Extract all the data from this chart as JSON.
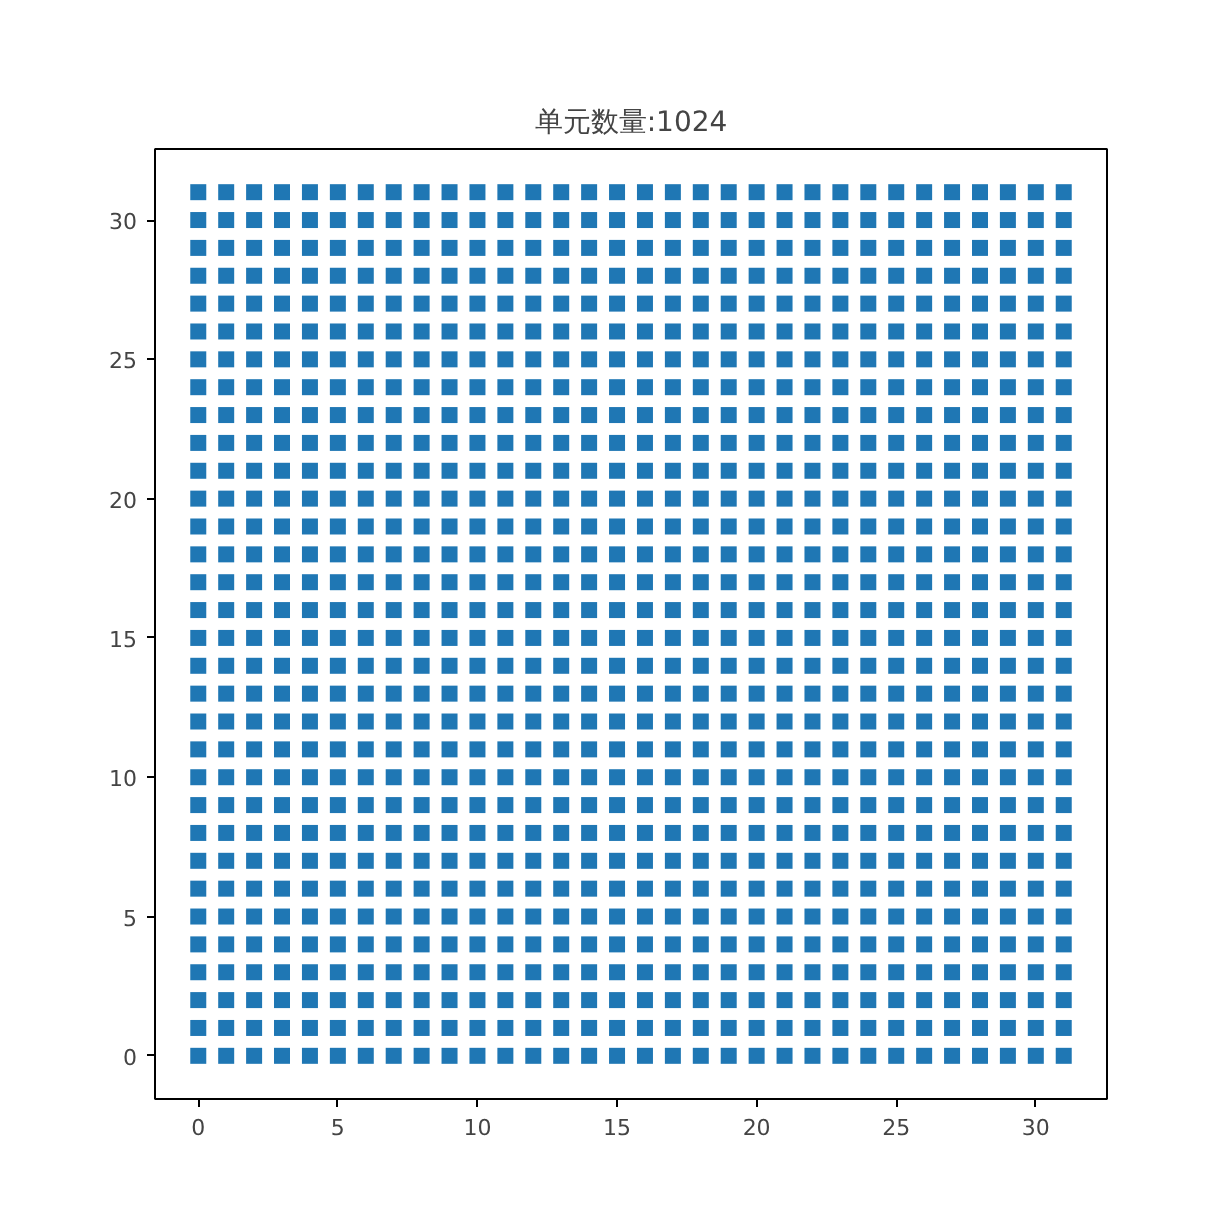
{
  "chart_data": {
    "type": "scatter",
    "title": "单元数量:1024",
    "marker": "square",
    "grid": false,
    "xlim": [
      -1.55,
      32.55
    ],
    "ylim": [
      -1.55,
      32.55
    ],
    "xticks": [
      0,
      5,
      10,
      15,
      20,
      25,
      30
    ],
    "yticks": [
      0,
      5,
      10,
      15,
      20,
      25,
      30
    ],
    "x": [
      0,
      1,
      2,
      3,
      4,
      5,
      6,
      7,
      8,
      9,
      10,
      11,
      12,
      13,
      14,
      15,
      16,
      17,
      18,
      19,
      20,
      21,
      22,
      23,
      24,
      25,
      26,
      27,
      28,
      29,
      30,
      31
    ],
    "series": [
      {
        "color": "#1f77b4",
        "values": [
          0,
          0,
          0,
          0,
          0,
          0,
          0,
          0,
          0,
          0,
          0,
          0,
          0,
          0,
          0,
          0,
          0,
          0,
          0,
          0,
          0,
          0,
          0,
          0,
          0,
          0,
          0,
          0,
          0,
          0,
          0,
          0
        ]
      },
      {
        "color": "#1f77b4",
        "values": [
          1,
          1,
          1,
          1,
          1,
          1,
          1,
          1,
          1,
          1,
          1,
          1,
          1,
          1,
          1,
          1,
          1,
          1,
          1,
          1,
          1,
          1,
          1,
          1,
          1,
          1,
          1,
          1,
          1,
          1,
          1,
          1
        ]
      },
      {
        "color": "#1f77b4",
        "values": [
          2,
          2,
          2,
          2,
          2,
          2,
          2,
          2,
          2,
          2,
          2,
          2,
          2,
          2,
          2,
          2,
          2,
          2,
          2,
          2,
          2,
          2,
          2,
          2,
          2,
          2,
          2,
          2,
          2,
          2,
          2,
          2
        ]
      },
      {
        "color": "#1f77b4",
        "values": [
          3,
          3,
          3,
          3,
          3,
          3,
          3,
          3,
          3,
          3,
          3,
          3,
          3,
          3,
          3,
          3,
          3,
          3,
          3,
          3,
          3,
          3,
          3,
          3,
          3,
          3,
          3,
          3,
          3,
          3,
          3,
          3
        ]
      },
      {
        "color": "#1f77b4",
        "values": [
          4,
          4,
          4,
          4,
          4,
          4,
          4,
          4,
          4,
          4,
          4,
          4,
          4,
          4,
          4,
          4,
          4,
          4,
          4,
          4,
          4,
          4,
          4,
          4,
          4,
          4,
          4,
          4,
          4,
          4,
          4,
          4
        ]
      },
      {
        "color": "#1f77b4",
        "values": [
          5,
          5,
          5,
          5,
          5,
          5,
          5,
          5,
          5,
          5,
          5,
          5,
          5,
          5,
          5,
          5,
          5,
          5,
          5,
          5,
          5,
          5,
          5,
          5,
          5,
          5,
          5,
          5,
          5,
          5,
          5,
          5
        ]
      },
      {
        "color": "#1f77b4",
        "values": [
          6,
          6,
          6,
          6,
          6,
          6,
          6,
          6,
          6,
          6,
          6,
          6,
          6,
          6,
          6,
          6,
          6,
          6,
          6,
          6,
          6,
          6,
          6,
          6,
          6,
          6,
          6,
          6,
          6,
          6,
          6,
          6
        ]
      },
      {
        "color": "#1f77b4",
        "values": [
          7,
          7,
          7,
          7,
          7,
          7,
          7,
          7,
          7,
          7,
          7,
          7,
          7,
          7,
          7,
          7,
          7,
          7,
          7,
          7,
          7,
          7,
          7,
          7,
          7,
          7,
          7,
          7,
          7,
          7,
          7,
          7
        ]
      },
      {
        "color": "#1f77b4",
        "values": [
          8,
          8,
          8,
          8,
          8,
          8,
          8,
          8,
          8,
          8,
          8,
          8,
          8,
          8,
          8,
          8,
          8,
          8,
          8,
          8,
          8,
          8,
          8,
          8,
          8,
          8,
          8,
          8,
          8,
          8,
          8,
          8
        ]
      },
      {
        "color": "#1f77b4",
        "values": [
          9,
          9,
          9,
          9,
          9,
          9,
          9,
          9,
          9,
          9,
          9,
          9,
          9,
          9,
          9,
          9,
          9,
          9,
          9,
          9,
          9,
          9,
          9,
          9,
          9,
          9,
          9,
          9,
          9,
          9,
          9,
          9
        ]
      },
      {
        "color": "#1f77b4",
        "values": [
          10,
          10,
          10,
          10,
          10,
          10,
          10,
          10,
          10,
          10,
          10,
          10,
          10,
          10,
          10,
          10,
          10,
          10,
          10,
          10,
          10,
          10,
          10,
          10,
          10,
          10,
          10,
          10,
          10,
          10,
          10,
          10
        ]
      },
      {
        "color": "#1f77b4",
        "values": [
          11,
          11,
          11,
          11,
          11,
          11,
          11,
          11,
          11,
          11,
          11,
          11,
          11,
          11,
          11,
          11,
          11,
          11,
          11,
          11,
          11,
          11,
          11,
          11,
          11,
          11,
          11,
          11,
          11,
          11,
          11,
          11
        ]
      },
      {
        "color": "#1f77b4",
        "values": [
          12,
          12,
          12,
          12,
          12,
          12,
          12,
          12,
          12,
          12,
          12,
          12,
          12,
          12,
          12,
          12,
          12,
          12,
          12,
          12,
          12,
          12,
          12,
          12,
          12,
          12,
          12,
          12,
          12,
          12,
          12,
          12
        ]
      },
      {
        "color": "#1f77b4",
        "values": [
          13,
          13,
          13,
          13,
          13,
          13,
          13,
          13,
          13,
          13,
          13,
          13,
          13,
          13,
          13,
          13,
          13,
          13,
          13,
          13,
          13,
          13,
          13,
          13,
          13,
          13,
          13,
          13,
          13,
          13,
          13,
          13
        ]
      },
      {
        "color": "#1f77b4",
        "values": [
          14,
          14,
          14,
          14,
          14,
          14,
          14,
          14,
          14,
          14,
          14,
          14,
          14,
          14,
          14,
          14,
          14,
          14,
          14,
          14,
          14,
          14,
          14,
          14,
          14,
          14,
          14,
          14,
          14,
          14,
          14,
          14
        ]
      },
      {
        "color": "#1f77b4",
        "values": [
          15,
          15,
          15,
          15,
          15,
          15,
          15,
          15,
          15,
          15,
          15,
          15,
          15,
          15,
          15,
          15,
          15,
          15,
          15,
          15,
          15,
          15,
          15,
          15,
          15,
          15,
          15,
          15,
          15,
          15,
          15,
          15
        ]
      },
      {
        "color": "#1f77b4",
        "values": [
          16,
          16,
          16,
          16,
          16,
          16,
          16,
          16,
          16,
          16,
          16,
          16,
          16,
          16,
          16,
          16,
          16,
          16,
          16,
          16,
          16,
          16,
          16,
          16,
          16,
          16,
          16,
          16,
          16,
          16,
          16,
          16
        ]
      },
      {
        "color": "#1f77b4",
        "values": [
          17,
          17,
          17,
          17,
          17,
          17,
          17,
          17,
          17,
          17,
          17,
          17,
          17,
          17,
          17,
          17,
          17,
          17,
          17,
          17,
          17,
          17,
          17,
          17,
          17,
          17,
          17,
          17,
          17,
          17,
          17,
          17
        ]
      },
      {
        "color": "#1f77b4",
        "values": [
          18,
          18,
          18,
          18,
          18,
          18,
          18,
          18,
          18,
          18,
          18,
          18,
          18,
          18,
          18,
          18,
          18,
          18,
          18,
          18,
          18,
          18,
          18,
          18,
          18,
          18,
          18,
          18,
          18,
          18,
          18,
          18
        ]
      },
      {
        "color": "#1f77b4",
        "values": [
          19,
          19,
          19,
          19,
          19,
          19,
          19,
          19,
          19,
          19,
          19,
          19,
          19,
          19,
          19,
          19,
          19,
          19,
          19,
          19,
          19,
          19,
          19,
          19,
          19,
          19,
          19,
          19,
          19,
          19,
          19,
          19
        ]
      },
      {
        "color": "#1f77b4",
        "values": [
          20,
          20,
          20,
          20,
          20,
          20,
          20,
          20,
          20,
          20,
          20,
          20,
          20,
          20,
          20,
          20,
          20,
          20,
          20,
          20,
          20,
          20,
          20,
          20,
          20,
          20,
          20,
          20,
          20,
          20,
          20,
          20
        ]
      },
      {
        "color": "#1f77b4",
        "values": [
          21,
          21,
          21,
          21,
          21,
          21,
          21,
          21,
          21,
          21,
          21,
          21,
          21,
          21,
          21,
          21,
          21,
          21,
          21,
          21,
          21,
          21,
          21,
          21,
          21,
          21,
          21,
          21,
          21,
          21,
          21,
          21
        ]
      },
      {
        "color": "#1f77b4",
        "values": [
          22,
          22,
          22,
          22,
          22,
          22,
          22,
          22,
          22,
          22,
          22,
          22,
          22,
          22,
          22,
          22,
          22,
          22,
          22,
          22,
          22,
          22,
          22,
          22,
          22,
          22,
          22,
          22,
          22,
          22,
          22,
          22
        ]
      },
      {
        "color": "#1f77b4",
        "values": [
          23,
          23,
          23,
          23,
          23,
          23,
          23,
          23,
          23,
          23,
          23,
          23,
          23,
          23,
          23,
          23,
          23,
          23,
          23,
          23,
          23,
          23,
          23,
          23,
          23,
          23,
          23,
          23,
          23,
          23,
          23,
          23
        ]
      },
      {
        "color": "#1f77b4",
        "values": [
          24,
          24,
          24,
          24,
          24,
          24,
          24,
          24,
          24,
          24,
          24,
          24,
          24,
          24,
          24,
          24,
          24,
          24,
          24,
          24,
          24,
          24,
          24,
          24,
          24,
          24,
          24,
          24,
          24,
          24,
          24,
          24
        ]
      },
      {
        "color": "#1f77b4",
        "values": [
          25,
          25,
          25,
          25,
          25,
          25,
          25,
          25,
          25,
          25,
          25,
          25,
          25,
          25,
          25,
          25,
          25,
          25,
          25,
          25,
          25,
          25,
          25,
          25,
          25,
          25,
          25,
          25,
          25,
          25,
          25,
          25
        ]
      },
      {
        "color": "#1f77b4",
        "values": [
          26,
          26,
          26,
          26,
          26,
          26,
          26,
          26,
          26,
          26,
          26,
          26,
          26,
          26,
          26,
          26,
          26,
          26,
          26,
          26,
          26,
          26,
          26,
          26,
          26,
          26,
          26,
          26,
          26,
          26,
          26,
          26
        ]
      },
      {
        "color": "#1f77b4",
        "values": [
          27,
          27,
          27,
          27,
          27,
          27,
          27,
          27,
          27,
          27,
          27,
          27,
          27,
          27,
          27,
          27,
          27,
          27,
          27,
          27,
          27,
          27,
          27,
          27,
          27,
          27,
          27,
          27,
          27,
          27,
          27,
          27
        ]
      },
      {
        "color": "#1f77b4",
        "values": [
          28,
          28,
          28,
          28,
          28,
          28,
          28,
          28,
          28,
          28,
          28,
          28,
          28,
          28,
          28,
          28,
          28,
          28,
          28,
          28,
          28,
          28,
          28,
          28,
          28,
          28,
          28,
          28,
          28,
          28,
          28,
          28
        ]
      },
      {
        "color": "#1f77b4",
        "values": [
          29,
          29,
          29,
          29,
          29,
          29,
          29,
          29,
          29,
          29,
          29,
          29,
          29,
          29,
          29,
          29,
          29,
          29,
          29,
          29,
          29,
          29,
          29,
          29,
          29,
          29,
          29,
          29,
          29,
          29,
          29,
          29
        ]
      },
      {
        "color": "#1f77b4",
        "values": [
          30,
          30,
          30,
          30,
          30,
          30,
          30,
          30,
          30,
          30,
          30,
          30,
          30,
          30,
          30,
          30,
          30,
          30,
          30,
          30,
          30,
          30,
          30,
          30,
          30,
          30,
          30,
          30,
          30,
          30,
          30,
          30
        ]
      },
      {
        "color": "#1f77b4",
        "values": [
          31,
          31,
          31,
          31,
          31,
          31,
          31,
          31,
          31,
          31,
          31,
          31,
          31,
          31,
          31,
          31,
          31,
          31,
          31,
          31,
          31,
          31,
          31,
          31,
          31,
          31,
          31,
          31,
          31,
          31,
          31,
          31
        ]
      }
    ]
  }
}
